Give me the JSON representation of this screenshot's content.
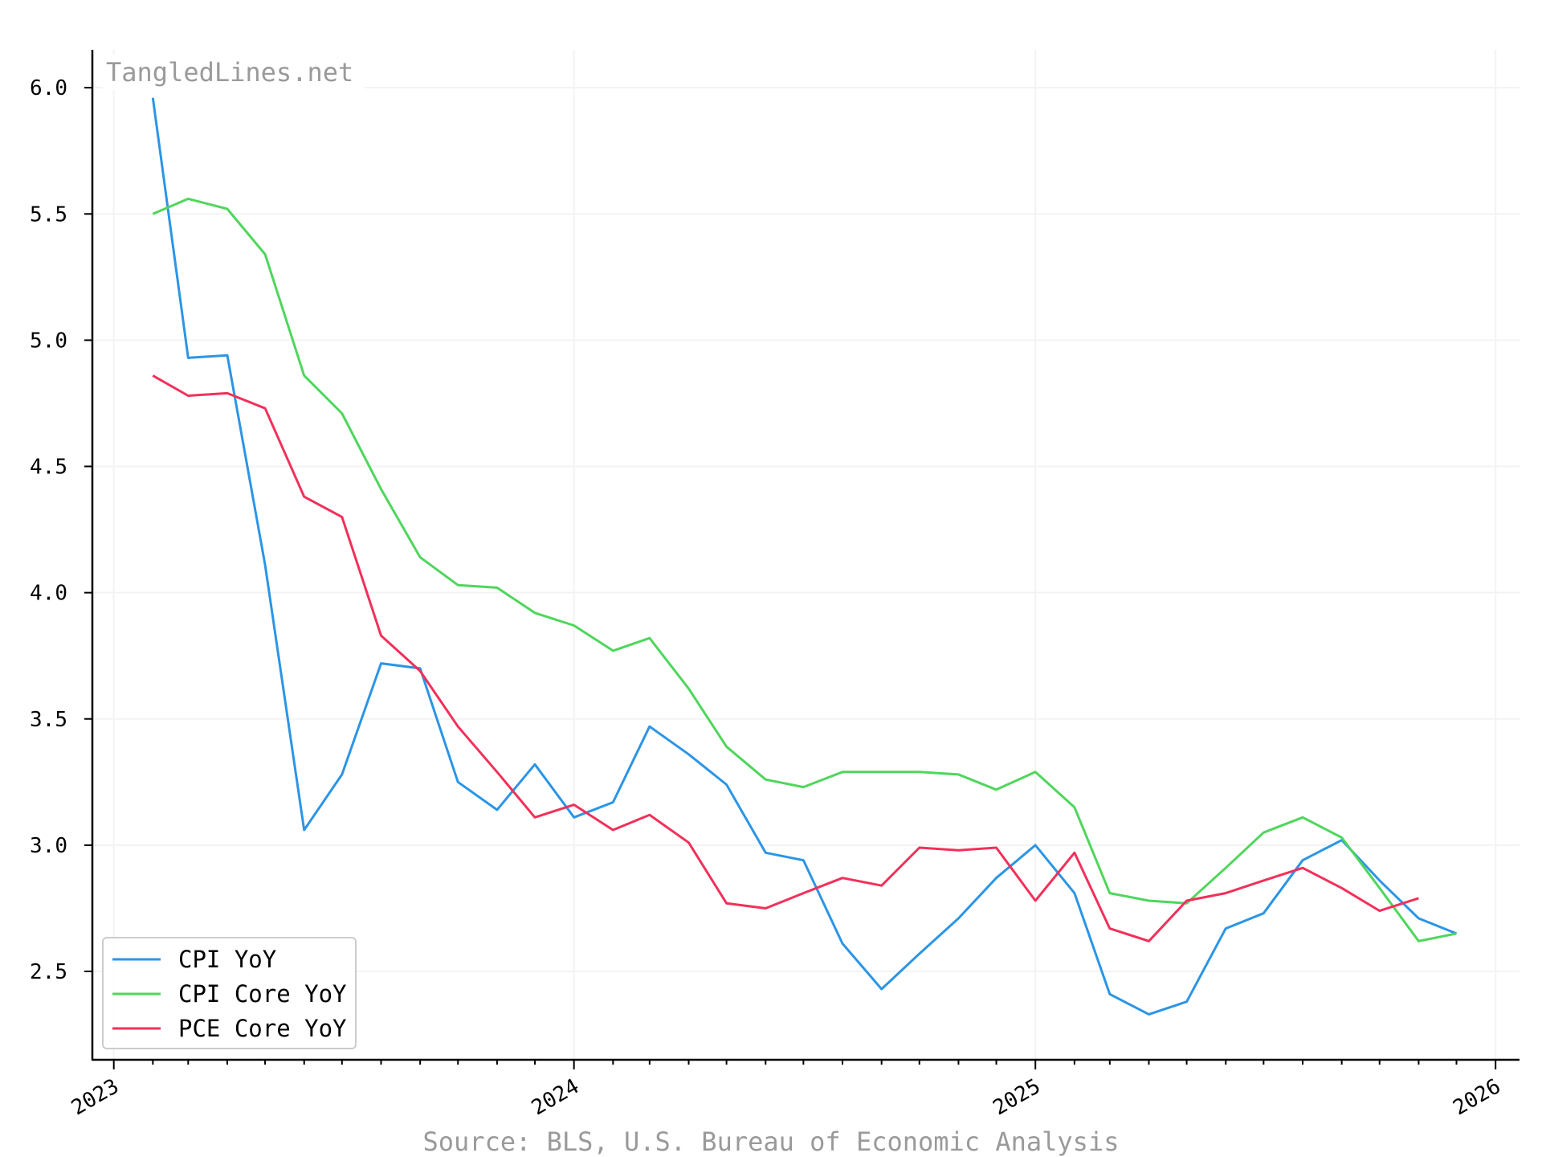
{
  "chart_data": {
    "type": "line",
    "watermark": "TangledLines.net",
    "source": "Source: BLS, U.S. Bureau of Economic Analysis",
    "ylim": [
      2.15,
      6.15
    ],
    "yticks": [
      2.5,
      3.0,
      3.5,
      4.0,
      4.5,
      5.0,
      5.5,
      6.0
    ],
    "xlim": [
      "2022-12-15",
      "2026-01-20"
    ],
    "xticks": [
      {
        "date": "2023-01-01",
        "label": "2023"
      },
      {
        "date": "2024-01-01",
        "label": "2024"
      },
      {
        "date": "2025-01-01",
        "label": "2025"
      },
      {
        "date": "2026-01-01",
        "label": "2026"
      }
    ],
    "grid": true,
    "legend_position": "lower-left",
    "series": [
      {
        "name": "CPI YoY",
        "color": "#2b95e6",
        "x": [
          "2023-02-01",
          "2023-03-01",
          "2023-04-01",
          "2023-05-01",
          "2023-06-01",
          "2023-07-01",
          "2023-08-01",
          "2023-09-01",
          "2023-10-01",
          "2023-11-01",
          "2023-12-01",
          "2024-01-01",
          "2024-02-01",
          "2024-03-01",
          "2024-04-01",
          "2024-05-01",
          "2024-06-01",
          "2024-07-01",
          "2024-08-01",
          "2024-09-01",
          "2024-10-01",
          "2024-11-01",
          "2024-12-01",
          "2025-01-01",
          "2025-02-01",
          "2025-03-01",
          "2025-04-01",
          "2025-05-01",
          "2025-06-01",
          "2025-07-01",
          "2025-08-01",
          "2025-09-01",
          "2025-10-01",
          "2025-11-01",
          "2025-12-01"
        ],
        "values": [
          5.96,
          4.93,
          4.94,
          4.11,
          3.06,
          3.28,
          3.72,
          3.7,
          3.25,
          3.14,
          3.32,
          3.11,
          3.17,
          3.47,
          3.36,
          3.24,
          2.97,
          2.94,
          2.61,
          2.43,
          2.57,
          2.71,
          2.87,
          3.0,
          2.81,
          2.41,
          2.33,
          2.38,
          2.67,
          2.73,
          2.94,
          3.02,
          2.86,
          2.71,
          2.65
        ]
      },
      {
        "name": "CPI Core YoY",
        "color": "#4fd65c",
        "x": [
          "2023-02-01",
          "2023-03-01",
          "2023-04-01",
          "2023-05-01",
          "2023-06-01",
          "2023-07-01",
          "2023-08-01",
          "2023-09-01",
          "2023-10-01",
          "2023-11-01",
          "2023-12-01",
          "2024-01-01",
          "2024-02-01",
          "2024-03-01",
          "2024-04-01",
          "2024-05-01",
          "2024-06-01",
          "2024-07-01",
          "2024-08-01",
          "2024-09-01",
          "2024-10-01",
          "2024-11-01",
          "2024-12-01",
          "2025-01-01",
          "2025-02-01",
          "2025-03-01",
          "2025-04-01",
          "2025-05-01",
          "2025-06-01",
          "2025-07-01",
          "2025-08-01",
          "2025-09-01",
          "2025-10-01",
          "2025-11-01",
          "2025-12-01"
        ],
        "values": [
          5.5,
          5.56,
          5.52,
          5.34,
          4.86,
          4.71,
          4.41,
          4.14,
          4.03,
          4.02,
          3.92,
          3.87,
          3.77,
          3.82,
          3.62,
          3.39,
          3.26,
          3.23,
          3.29,
          3.29,
          3.29,
          3.28,
          3.22,
          3.29,
          3.15,
          2.81,
          2.78,
          2.77,
          2.91,
          3.05,
          3.11,
          3.03,
          2.83,
          2.62,
          2.65
        ]
      },
      {
        "name": "PCE Core YoY",
        "color": "#f2305a",
        "x": [
          "2023-02-01",
          "2023-03-01",
          "2023-04-01",
          "2023-05-01",
          "2023-06-01",
          "2023-07-01",
          "2023-08-01",
          "2023-09-01",
          "2023-10-01",
          "2023-11-01",
          "2023-12-01",
          "2024-01-01",
          "2024-02-01",
          "2024-03-01",
          "2024-04-01",
          "2024-05-01",
          "2024-06-01",
          "2024-07-01",
          "2024-08-01",
          "2024-09-01",
          "2024-10-01",
          "2024-11-01",
          "2024-12-01",
          "2025-01-01",
          "2025-02-01",
          "2025-03-01",
          "2025-04-01",
          "2025-05-01",
          "2025-06-01",
          "2025-07-01",
          "2025-08-01",
          "2025-09-01",
          "2025-10-01",
          "2025-11-01"
        ],
        "values": [
          4.86,
          4.78,
          4.79,
          4.73,
          4.38,
          4.3,
          3.83,
          3.69,
          3.47,
          3.29,
          3.11,
          3.16,
          3.06,
          3.12,
          3.01,
          2.77,
          2.75,
          2.81,
          2.87,
          2.84,
          2.99,
          2.98,
          2.99,
          2.78,
          2.97,
          2.67,
          2.62,
          2.78,
          2.81,
          2.86,
          2.91,
          2.83,
          2.74,
          2.79
        ]
      }
    ]
  }
}
